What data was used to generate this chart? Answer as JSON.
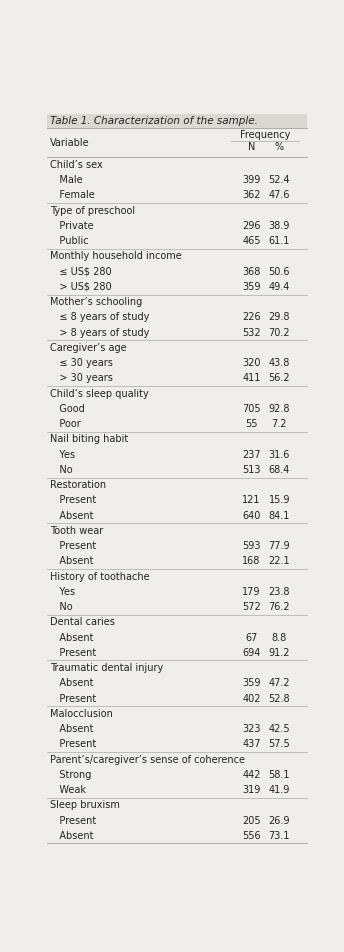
{
  "title": "Table 1. Characterization of the sample.",
  "header_col": "Variable",
  "header_group": "Frequency",
  "header_n": "N",
  "header_pct": "%",
  "rows": [
    {
      "label": "Child’s sex",
      "indent": false,
      "n": "",
      "pct": ""
    },
    {
      "label": "   Male",
      "indent": true,
      "n": "399",
      "pct": "52.4"
    },
    {
      "label": "   Female",
      "indent": true,
      "n": "362",
      "pct": "47.6"
    },
    {
      "label": "Type of preschool",
      "indent": false,
      "n": "",
      "pct": ""
    },
    {
      "label": "   Private",
      "indent": true,
      "n": "296",
      "pct": "38.9"
    },
    {
      "label": "   Public",
      "indent": true,
      "n": "465",
      "pct": "61.1"
    },
    {
      "label": "Monthly household income",
      "indent": false,
      "n": "",
      "pct": ""
    },
    {
      "label": "   ≤ US$ 280",
      "indent": true,
      "n": "368",
      "pct": "50.6"
    },
    {
      "label": "   > US$ 280",
      "indent": true,
      "n": "359",
      "pct": "49.4"
    },
    {
      "label": "Mother’s schooling",
      "indent": false,
      "n": "",
      "pct": ""
    },
    {
      "label": "   ≤ 8 years of study",
      "indent": true,
      "n": "226",
      "pct": "29.8"
    },
    {
      "label": "   > 8 years of study",
      "indent": true,
      "n": "532",
      "pct": "70.2"
    },
    {
      "label": "Caregiver’s age",
      "indent": false,
      "n": "",
      "pct": ""
    },
    {
      "label": "   ≤ 30 years",
      "indent": true,
      "n": "320",
      "pct": "43.8"
    },
    {
      "label": "   > 30 years",
      "indent": true,
      "n": "411",
      "pct": "56.2"
    },
    {
      "label": "Child’s sleep quality",
      "indent": false,
      "n": "",
      "pct": ""
    },
    {
      "label": "   Good",
      "indent": true,
      "n": "705",
      "pct": "92.8"
    },
    {
      "label": "   Poor",
      "indent": true,
      "n": "55",
      "pct": "7.2"
    },
    {
      "label": "Nail biting habit",
      "indent": false,
      "n": "",
      "pct": ""
    },
    {
      "label": "   Yes",
      "indent": true,
      "n": "237",
      "pct": "31.6"
    },
    {
      "label": "   No",
      "indent": true,
      "n": "513",
      "pct": "68.4"
    },
    {
      "label": "Restoration",
      "indent": false,
      "n": "",
      "pct": ""
    },
    {
      "label": "   Present",
      "indent": true,
      "n": "121",
      "pct": "15.9"
    },
    {
      "label": "   Absent",
      "indent": true,
      "n": "640",
      "pct": "84.1"
    },
    {
      "label": "Tooth wear",
      "indent": false,
      "n": "",
      "pct": ""
    },
    {
      "label": "   Present",
      "indent": true,
      "n": "593",
      "pct": "77.9"
    },
    {
      "label": "   Absent",
      "indent": true,
      "n": "168",
      "pct": "22.1"
    },
    {
      "label": "History of toothache",
      "indent": false,
      "n": "",
      "pct": ""
    },
    {
      "label": "   Yes",
      "indent": true,
      "n": "179",
      "pct": "23.8"
    },
    {
      "label": "   No",
      "indent": true,
      "n": "572",
      "pct": "76.2"
    },
    {
      "label": "Dental caries",
      "indent": false,
      "n": "",
      "pct": ""
    },
    {
      "label": "   Absent",
      "indent": true,
      "n": "67",
      "pct": "8.8"
    },
    {
      "label": "   Present",
      "indent": true,
      "n": "694",
      "pct": "91.2"
    },
    {
      "label": "Traumatic dental injury",
      "indent": false,
      "n": "",
      "pct": ""
    },
    {
      "label": "   Absent",
      "indent": true,
      "n": "359",
      "pct": "47.2"
    },
    {
      "label": "   Present",
      "indent": true,
      "n": "402",
      "pct": "52.8"
    },
    {
      "label": "Malocclusion",
      "indent": false,
      "n": "",
      "pct": ""
    },
    {
      "label": "   Absent",
      "indent": true,
      "n": "323",
      "pct": "42.5"
    },
    {
      "label": "   Present",
      "indent": true,
      "n": "437",
      "pct": "57.5"
    },
    {
      "label": "Parent’s/caregiver’s sense of coherence",
      "indent": false,
      "n": "",
      "pct": ""
    },
    {
      "label": "   Strong",
      "indent": true,
      "n": "442",
      "pct": "58.1"
    },
    {
      "label": "   Weak",
      "indent": true,
      "n": "319",
      "pct": "41.9"
    },
    {
      "label": "Sleep bruxism",
      "indent": false,
      "n": "",
      "pct": ""
    },
    {
      "label": "   Present",
      "indent": true,
      "n": "205",
      "pct": "26.9"
    },
    {
      "label": "   Absent",
      "indent": true,
      "n": "556",
      "pct": "73.1"
    }
  ],
  "bg_color": "#f0eeeb",
  "title_bg": "#dbd8d3",
  "line_color": "#aaaaaa",
  "text_color": "#222222",
  "font_size": 7.0,
  "title_font_size": 7.5
}
